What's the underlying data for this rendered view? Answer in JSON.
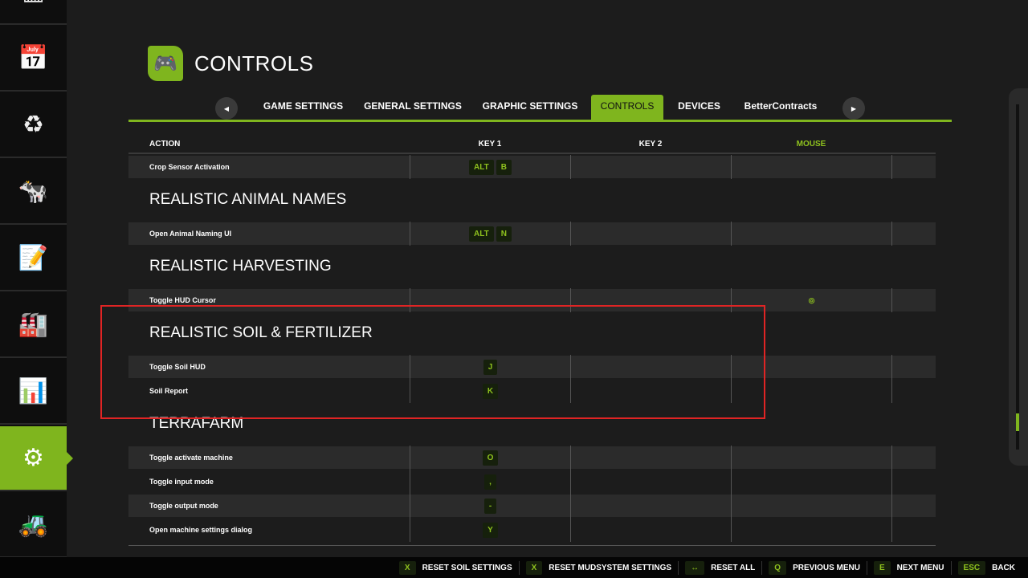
{
  "sidebar": {
    "items": [
      {
        "icon": "map-icon",
        "glyph": "▦"
      },
      {
        "icon": "calendar-icon",
        "glyph": "📅"
      },
      {
        "icon": "price-cycle-icon",
        "glyph": "♻"
      },
      {
        "icon": "animals-icon",
        "glyph": "🐄"
      },
      {
        "icon": "contracts-icon",
        "glyph": "📝"
      },
      {
        "icon": "production-icon",
        "glyph": "🏭"
      },
      {
        "icon": "statistics-icon",
        "glyph": "📊"
      },
      {
        "icon": "settings-icon",
        "glyph": "⚙",
        "active": true
      },
      {
        "icon": "construction-icon",
        "glyph": "🚜"
      }
    ]
  },
  "header": {
    "title": "CONTROLS",
    "icon": "controls-gamepad-icon"
  },
  "tabs": [
    "GAME SETTINGS",
    "GENERAL SETTINGS",
    "GRAPHIC SETTINGS",
    "CONTROLS",
    "DEVICES",
    "BetterContracts"
  ],
  "active_tab": "CONTROLS",
  "columns": {
    "action": "ACTION",
    "key1": "KEY 1",
    "key2": "KEY 2",
    "mouse": "MOUSE"
  },
  "rows": {
    "crop_sensor": {
      "action": "Crop Sensor Activation",
      "key1": [
        "ALT",
        "B"
      ]
    },
    "h_animal": "REALISTIC ANIMAL NAMES",
    "animal_naming": {
      "action": "Open Animal Naming UI",
      "key1": [
        "ALT",
        "N"
      ]
    },
    "h_harvest": "REALISTIC HARVESTING",
    "hud_cursor": {
      "action": "Toggle HUD Cursor",
      "mouse_icon": "mouse-button-icon"
    },
    "h_soil": "REALISTIC SOIL & FERTILIZER",
    "soil_hud": {
      "action": "Toggle Soil HUD",
      "key1": [
        "J"
      ]
    },
    "soil_report": {
      "action": "Soil Report",
      "key1": [
        "K"
      ]
    },
    "h_terra": "TERRAFARM",
    "tf1": {
      "action": "Toggle activate machine",
      "key1": [
        "O"
      ]
    },
    "tf2": {
      "action": "Toggle input mode",
      "key1": [
        ","
      ]
    },
    "tf3": {
      "action": "Toggle output mode",
      "key1": [
        "-"
      ]
    },
    "tf4": {
      "action": "Open machine settings dialog",
      "key1": [
        "Y"
      ]
    }
  },
  "footer": [
    {
      "key": "X",
      "label": "RESET SOIL SETTINGS"
    },
    {
      "key": "X",
      "label": "RESET MUDSYSTEM SETTINGS"
    },
    {
      "key": "↔",
      "label": "RESET ALL"
    },
    {
      "key": "Q",
      "label": "PREVIOUS MENU"
    },
    {
      "key": "E",
      "label": "NEXT MENU"
    },
    {
      "key": "ESC",
      "label": "BACK"
    }
  ],
  "colors": {
    "accent": "#7fb51e",
    "highlight": "#e02424"
  }
}
